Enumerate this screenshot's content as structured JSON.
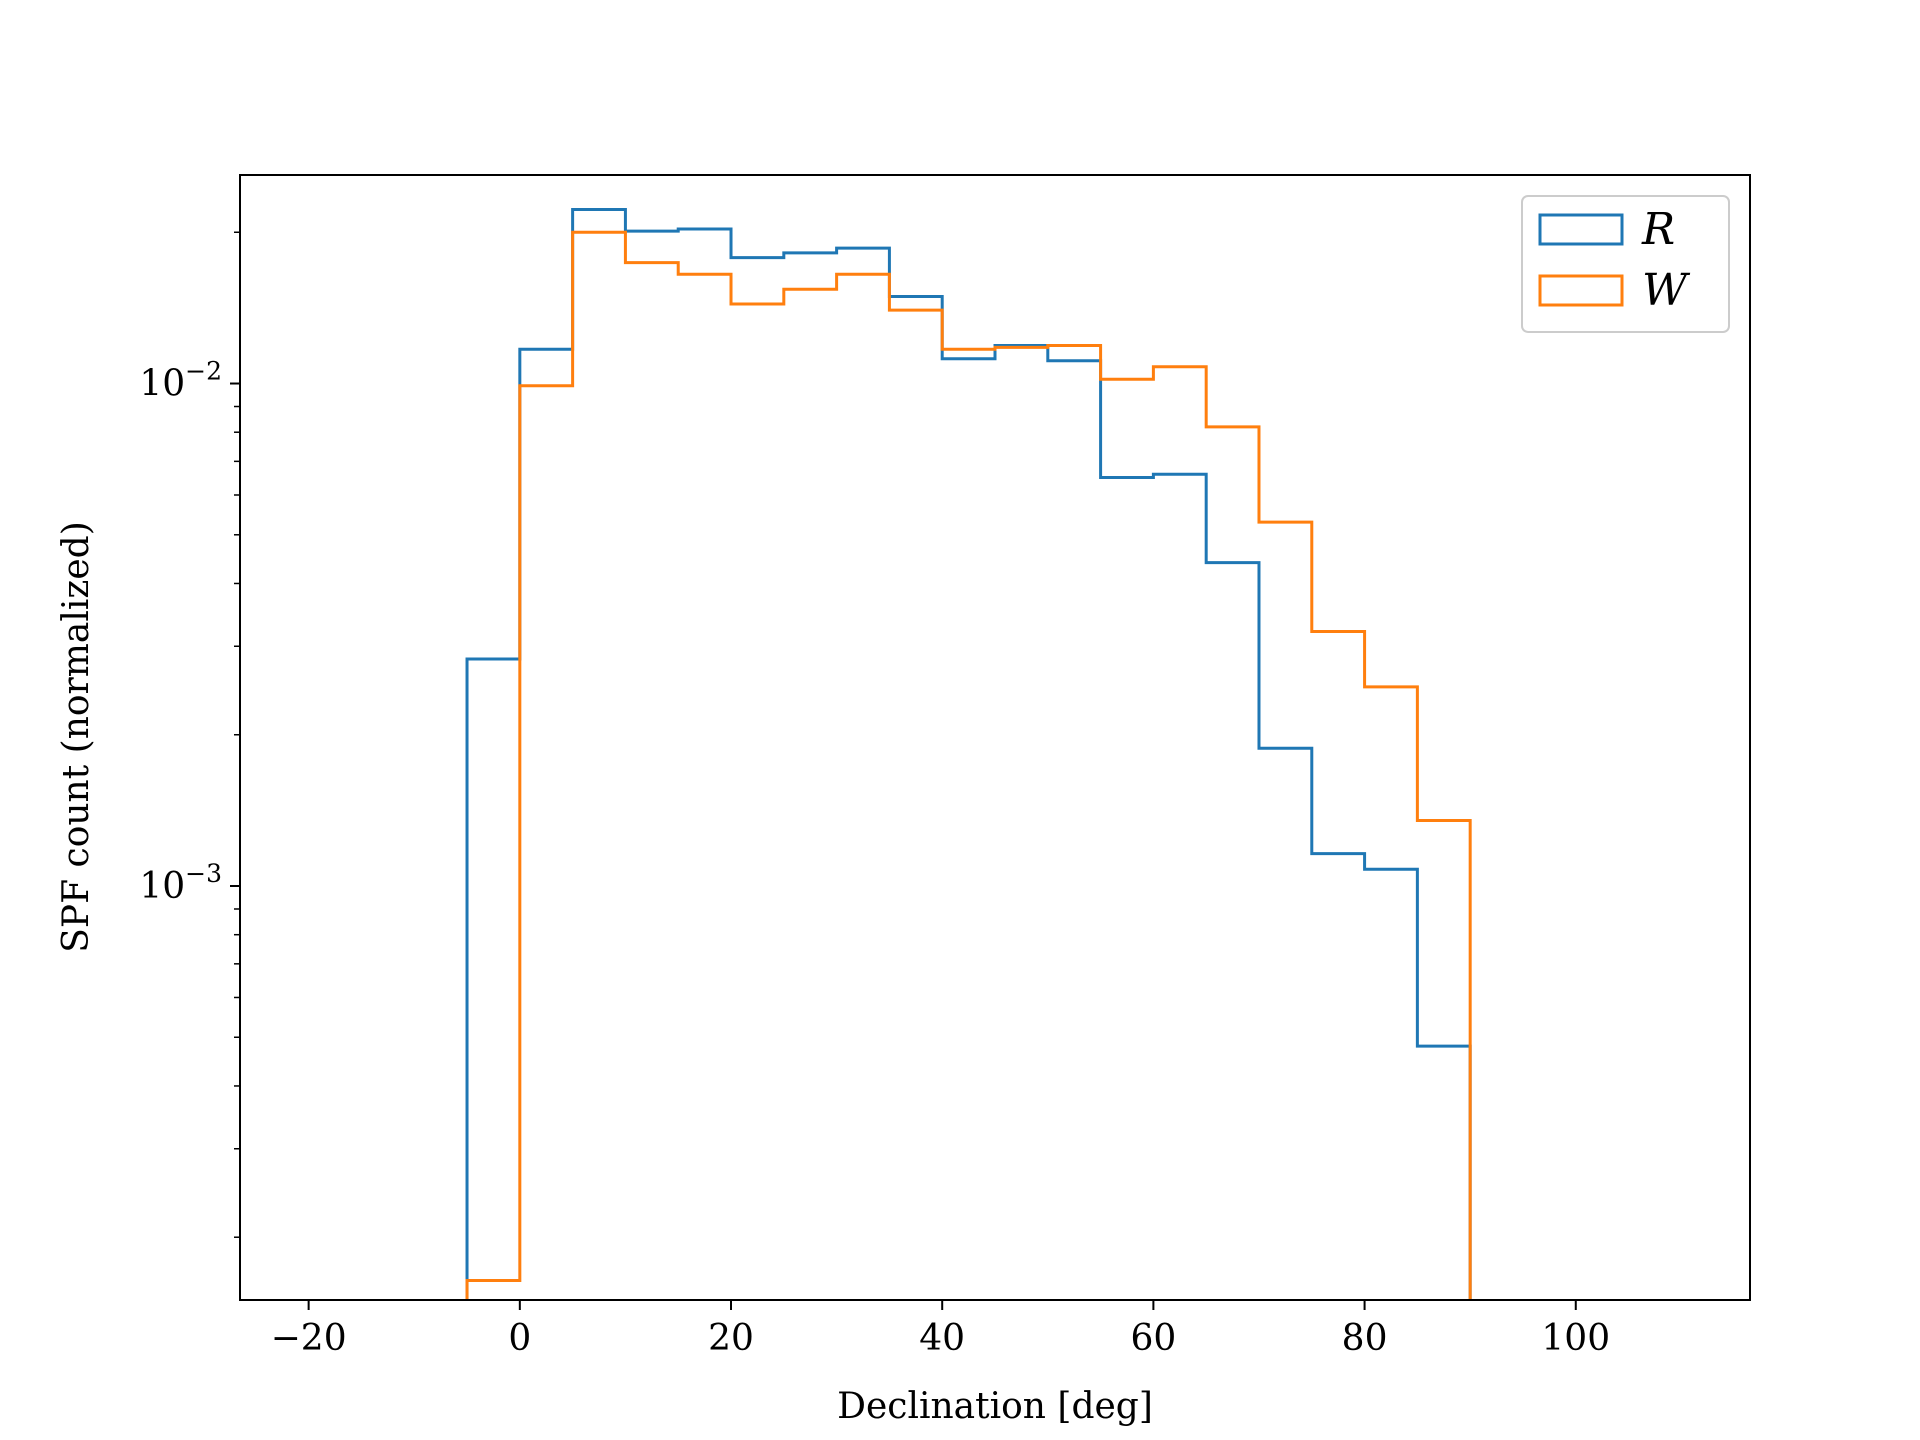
{
  "chart_data": {
    "type": "histogram-step",
    "xlabel": "Declination [deg]",
    "ylabel": "SPF count (normalized)",
    "title": "",
    "xlim": [
      -26.5,
      116.5
    ],
    "ylim": [
      0.00015,
      0.026
    ],
    "yscale": "log",
    "xticks": [
      -20,
      0,
      20,
      40,
      60,
      80,
      100
    ],
    "xtick_labels": [
      "−20",
      "0",
      "20",
      "40",
      "60",
      "80",
      "100"
    ],
    "yticks": [
      {
        "value": 0.01,
        "base": "10",
        "exp": "−2"
      },
      {
        "value": 0.001,
        "base": "10",
        "exp": "−3"
      }
    ],
    "legend_position": "top-right",
    "bin_edges": [
      -5,
      0,
      5,
      10,
      15,
      20,
      25,
      30,
      35,
      40,
      45,
      50,
      55,
      60,
      65,
      70,
      75,
      80,
      85,
      90
    ],
    "series": [
      {
        "name": "R",
        "color": "#1f77b4",
        "values": [
          0.00283,
          0.0117,
          0.0222,
          0.0201,
          0.0203,
          0.0178,
          0.0182,
          0.0186,
          0.0149,
          0.0112,
          0.0119,
          0.0111,
          0.0065,
          0.0066,
          0.0044,
          0.00188,
          0.00116,
          0.00108,
          0.00048
        ]
      },
      {
        "name": "W",
        "color": "#ff7f0e",
        "values": [
          0.000164,
          0.0099,
          0.02,
          0.0174,
          0.0165,
          0.0144,
          0.0154,
          0.0165,
          0.014,
          0.0117,
          0.0118,
          0.0119,
          0.0102,
          0.0108,
          0.0082,
          0.0053,
          0.00321,
          0.00249,
          0.00135
        ]
      }
    ]
  }
}
